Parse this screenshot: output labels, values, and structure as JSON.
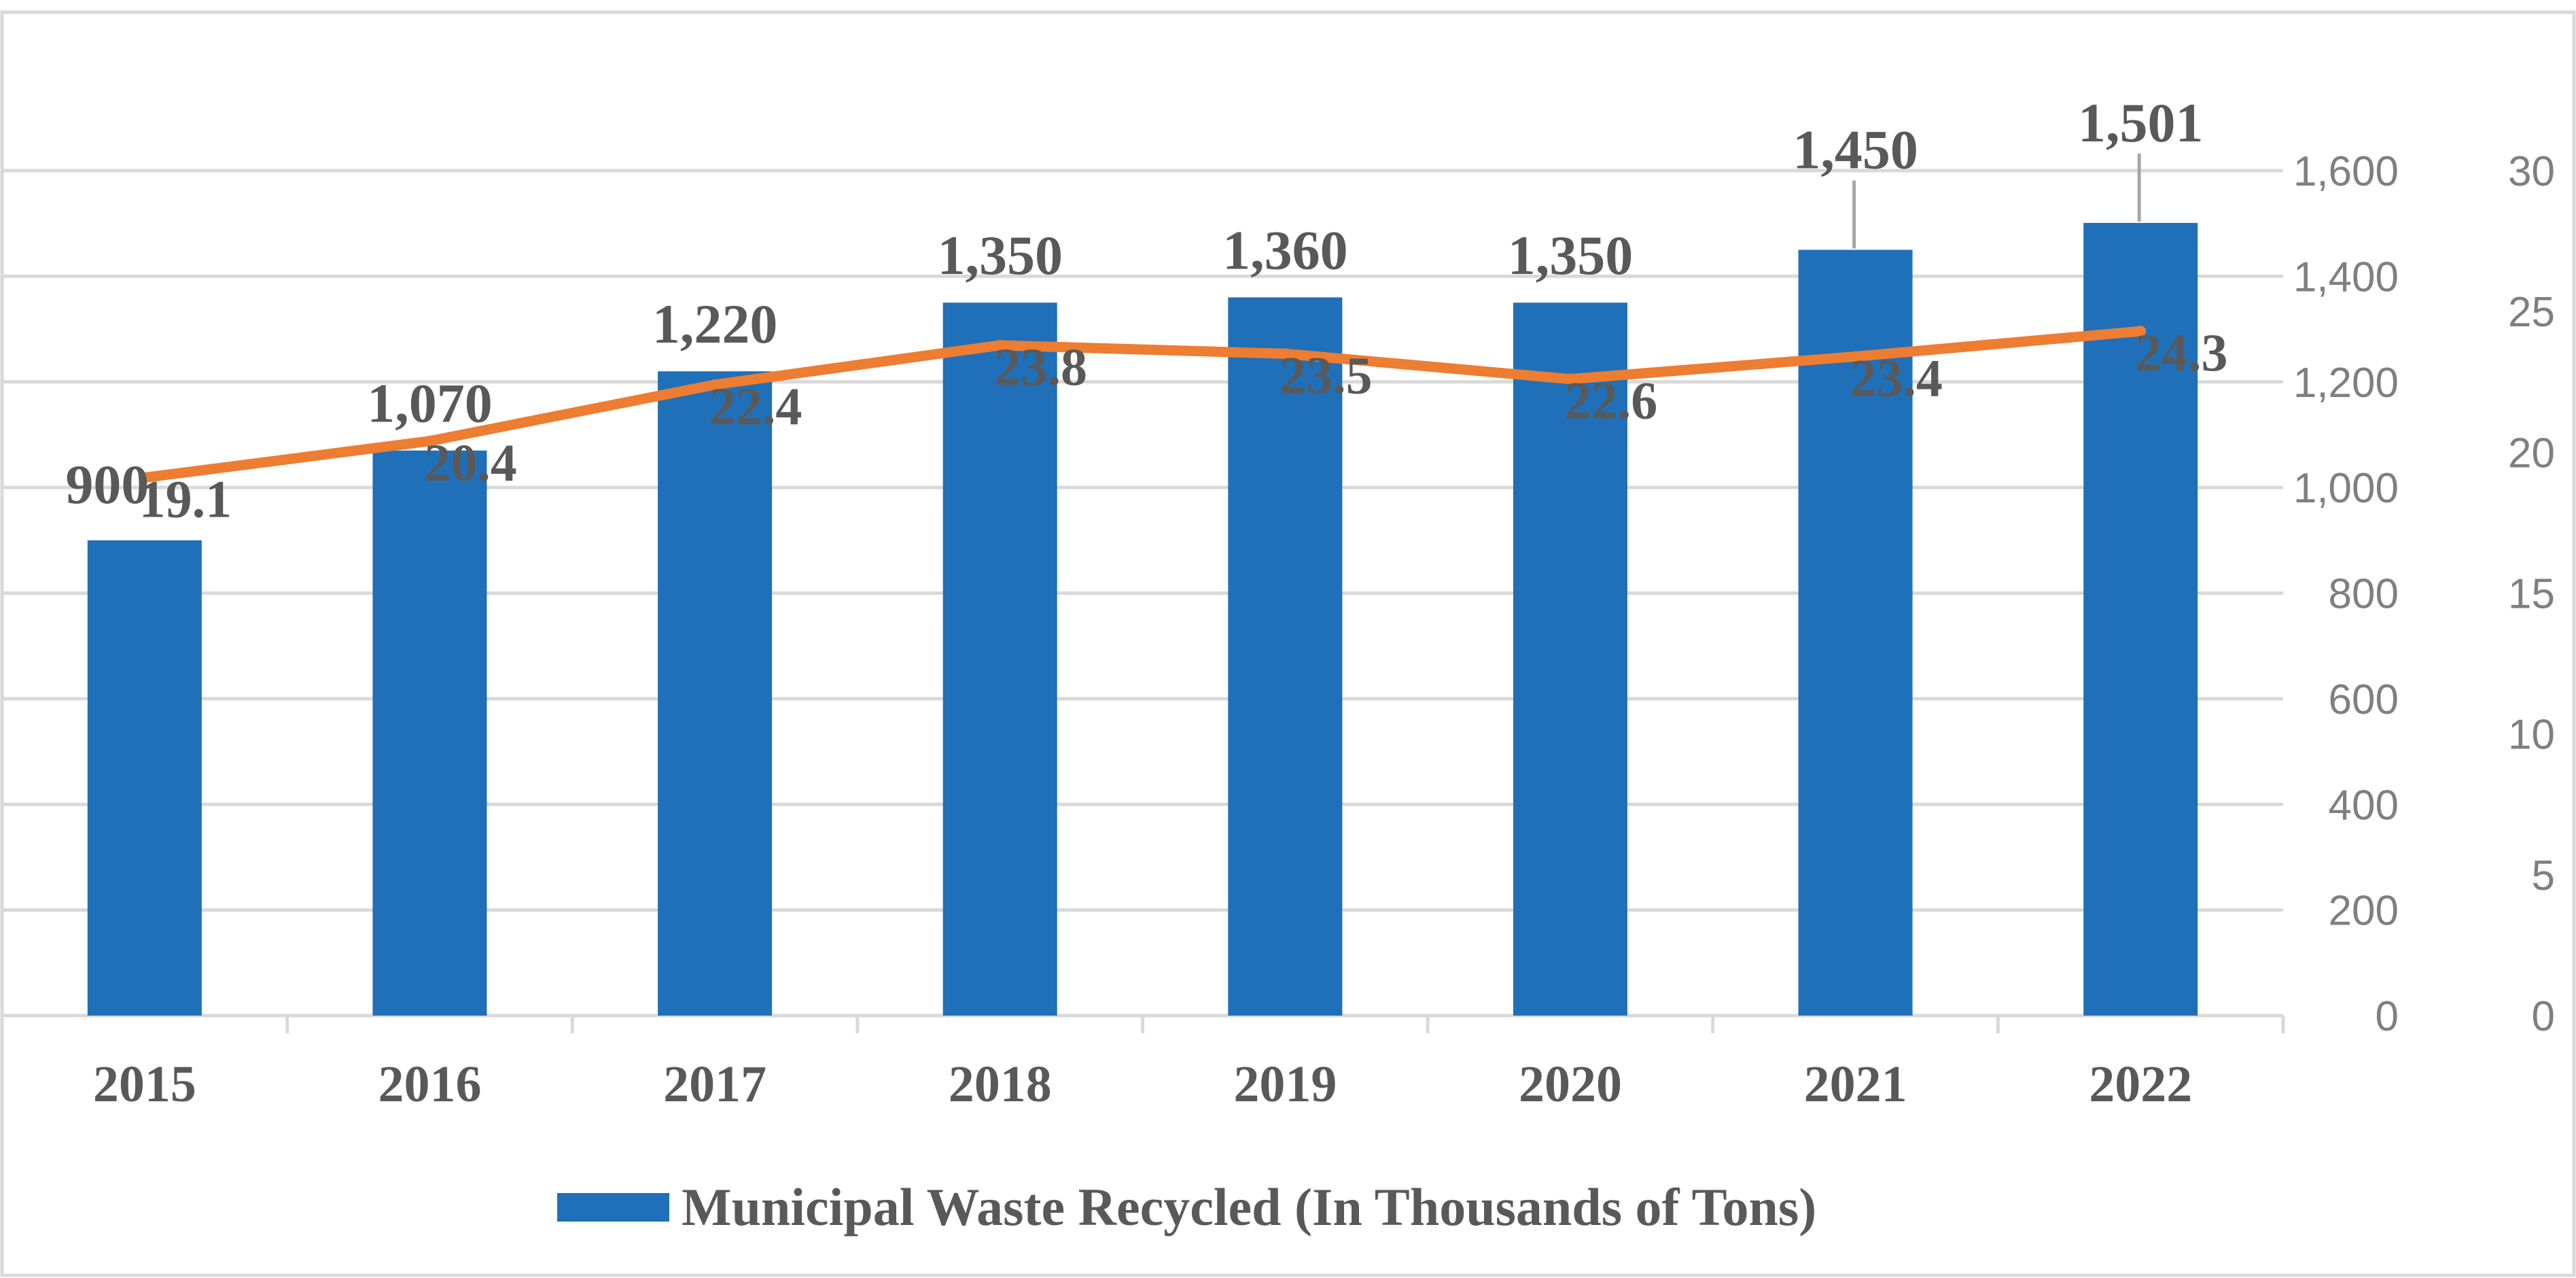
{
  "chart_data": {
    "type": "bar",
    "categories": [
      "2015",
      "2016",
      "2017",
      "2018",
      "2019",
      "2020",
      "2021",
      "2022"
    ],
    "series": [
      {
        "name": "Municipal Waste Recycled (In Thousands of Tons)",
        "kind": "bar",
        "axis": "left",
        "values": [
          900,
          1070,
          1220,
          1350,
          1360,
          1350,
          1450,
          1501
        ],
        "labels": [
          "900",
          "1,070",
          "1,220",
          "1,350",
          "1,360",
          "1,350",
          "1,450",
          "1,501"
        ],
        "color": "#1f70b8"
      },
      {
        "name": "",
        "kind": "line",
        "axis": "right",
        "values": [
          19.1,
          20.4,
          22.4,
          23.8,
          23.5,
          22.6,
          23.4,
          24.3
        ],
        "labels": [
          "19.1",
          "20.4",
          "22.4",
          "23.8",
          "23.5",
          "22.6",
          "23.4",
          "24.3"
        ],
        "color": "#ed7d31"
      }
    ],
    "y_left": {
      "range": [
        0,
        1600
      ],
      "ticks": [
        0,
        200,
        400,
        600,
        800,
        1000,
        1200,
        1400,
        1600
      ],
      "tick_labels": [
        "0",
        "200",
        "400",
        "600",
        "800",
        "1,000",
        "1,200",
        "1,400",
        "1,600"
      ]
    },
    "y_right": {
      "range": [
        0,
        30
      ],
      "ticks": [
        0,
        5,
        10,
        15,
        20,
        25,
        30
      ],
      "tick_labels": [
        "0",
        "5",
        "10",
        "15",
        "20",
        "25",
        "30"
      ]
    },
    "title": "",
    "xlabel": "",
    "ylabel": "",
    "grid": true,
    "legend": {
      "position": "bottom",
      "entries": [
        "Municipal Waste Recycled (In Thousands of Tons)"
      ]
    }
  }
}
